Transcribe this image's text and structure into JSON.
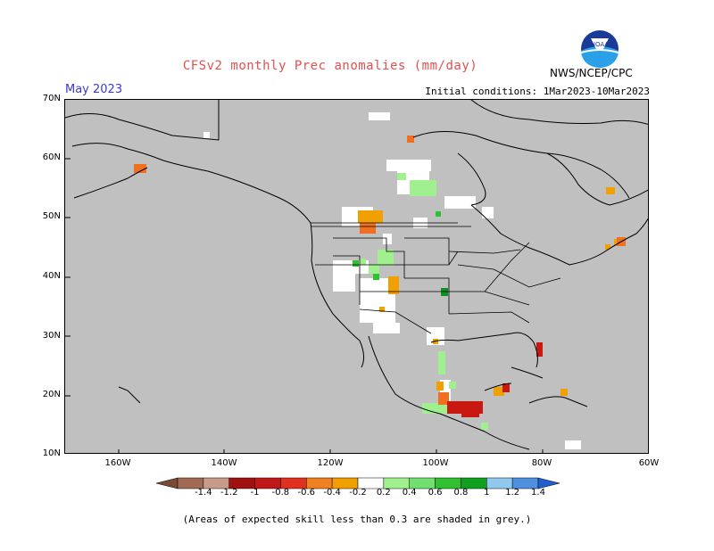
{
  "header": {
    "title": "CFSv2 monthly Prec anomalies (mm/day)",
    "month": "May 2023",
    "agency": "NWS/NCEP/CPC",
    "initial_conditions": "Initial conditions: 1Mar2023-10Mar2023",
    "logo_text": "NOAA"
  },
  "axes": {
    "lat_labels": [
      "70N",
      "60N",
      "50N",
      "40N",
      "30N",
      "20N",
      "10N"
    ],
    "lon_labels": [
      "160W",
      "140W",
      "120W",
      "100W",
      "80W",
      "60W"
    ]
  },
  "colorbar": {
    "labels": [
      "-1.4",
      "-1.2",
      "-1",
      "-0.8",
      "-0.6",
      "-0.4",
      "-0.2",
      "0.2",
      "0.4",
      "0.6",
      "0.8",
      "1",
      "1.2",
      "1.4"
    ],
    "colors": [
      "#7a4a35",
      "#a06a55",
      "#c89a8a",
      "#a01010",
      "#c01818",
      "#e03020",
      "#f08020",
      "#f0a000",
      "#ffffff",
      "#a0f090",
      "#70e070",
      "#30c030",
      "#10a020",
      "#90c8f0",
      "#5090e0",
      "#2060d0"
    ]
  },
  "footnote": "(Areas of expected skill less than 0.3 are shaded in grey.)",
  "colors": {
    "skill_mask": "#c0c0c0",
    "title": "#e05050",
    "month": "#3a3ad0"
  }
}
